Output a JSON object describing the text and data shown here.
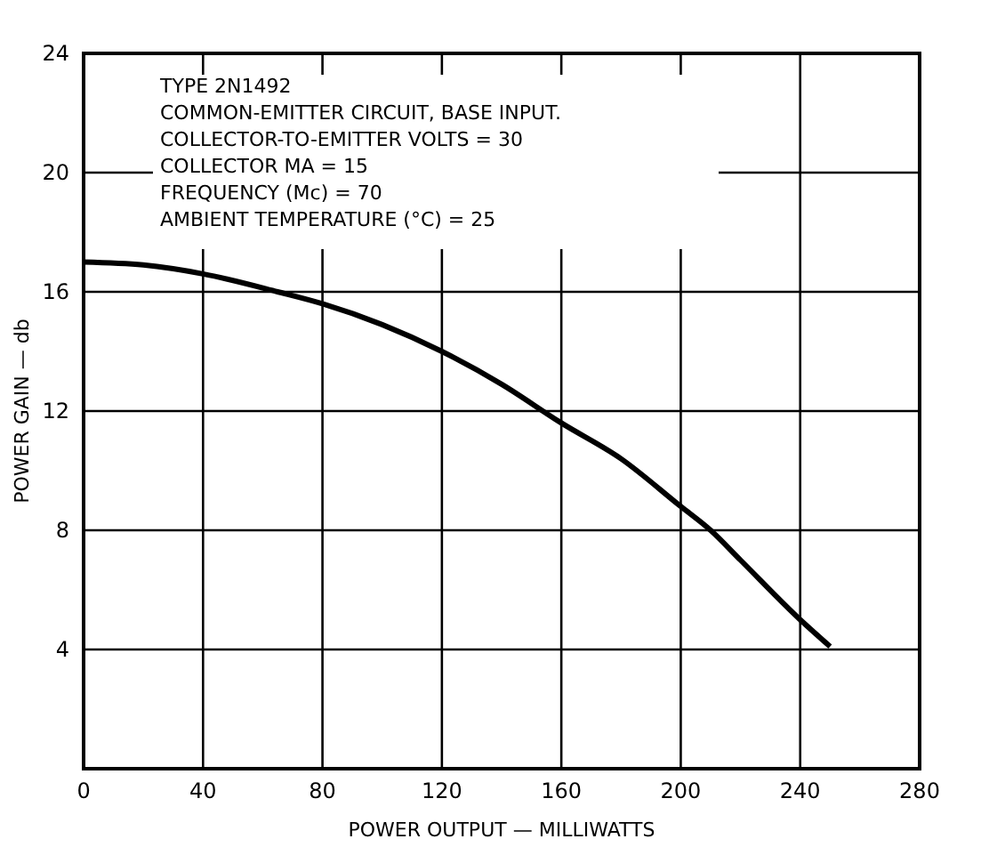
{
  "chart_data": {
    "type": "line",
    "xlabel": "POWER OUTPUT — MILLIWATTS",
    "ylabel": "POWER GAIN — db",
    "x": [
      0,
      20,
      40,
      65,
      80,
      100,
      120,
      140,
      160,
      180,
      200,
      210,
      220,
      240,
      250
    ],
    "series": [
      {
        "color": "#000000",
        "values": [
          17,
          16.9,
          16.6,
          16,
          15.6,
          14.9,
          14,
          12.9,
          11.6,
          10.4,
          8.8,
          8,
          7,
          5,
          4.1
        ]
      }
    ],
    "xlim": [
      0,
      280
    ],
    "xticks": [
      0,
      40,
      80,
      120,
      160,
      200,
      240,
      280
    ],
    "ylim": [
      0,
      24
    ],
    "yticks": [
      {
        "value": 0,
        "label": null
      },
      4,
      8,
      12,
      16,
      20,
      24
    ],
    "grid": true,
    "marker": "none",
    "line_style": "solid",
    "annotations": [
      "TYPE 2N1492",
      "COMMON-EMITTER CIRCUIT, BASE INPUT.",
      "COLLECTOR-TO-EMITTER VOLTS = 30",
      "COLLECTOR MA = 15",
      "FREQUENCY (Mc) = 70",
      "AMBIENT TEMPERATURE (°C) = 25"
    ]
  }
}
